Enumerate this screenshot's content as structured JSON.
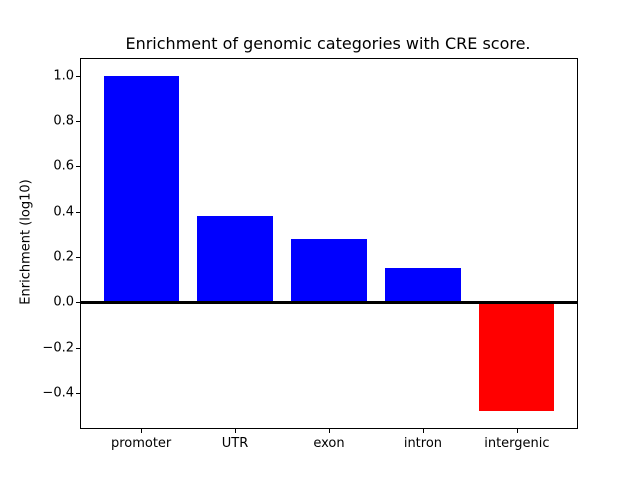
{
  "figure": {
    "title": "Enrichment of genomic categories with CRE score.",
    "background": "#ffffff"
  },
  "chart_data": {
    "type": "bar",
    "title": "Enrichment of genomic categories with CRE score.",
    "xlabel": "",
    "ylabel": "Enrichment (log10)",
    "categories": [
      "promoter",
      "UTR",
      "exon",
      "intron",
      "intergenic"
    ],
    "values": [
      1.0,
      0.38,
      0.28,
      0.15,
      -0.48
    ],
    "bar_colors": [
      "#0000ff",
      "#0000ff",
      "#0000ff",
      "#0000ff",
      "#ff0000"
    ],
    "positive_color": "#0000ff",
    "negative_color": "#ff0000",
    "ylim": [
      -0.554,
      1.074
    ],
    "xlim": [
      -0.64,
      4.64
    ],
    "bar_width_units": 0.8,
    "yticks": [
      1.0,
      0.8,
      0.6,
      0.4,
      0.2,
      0.0,
      -0.2,
      -0.4
    ],
    "ytick_labels": [
      "1.0",
      "0.8",
      "0.6",
      "0.4",
      "0.2",
      "0.0",
      "−0.2",
      "−0.4"
    ],
    "zero_line": true,
    "zero_line_color": "#000000",
    "grid": false,
    "legend": false,
    "axes_background": "#ffffff",
    "spine_color": "#000000",
    "text_color": "#000000"
  }
}
